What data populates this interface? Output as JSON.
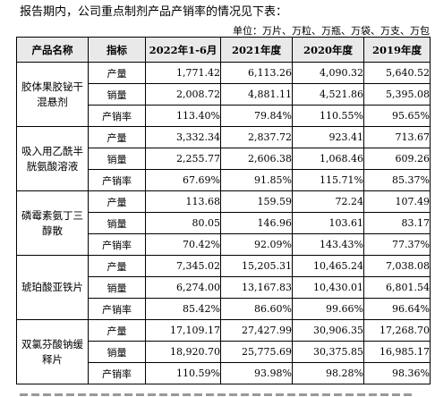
{
  "intro_text": "报告期内，公司重点制剂产品产销率的情况见下表：",
  "unit_text": "单位：万片、万粒、万瓶、万袋、万支、万包",
  "table": {
    "headers": [
      "产品名称",
      "指标",
      "2022年1-6月",
      "2021年度",
      "2020年度",
      "2019年度"
    ],
    "products": [
      {
        "name": "胶体果胶铋干混悬剂",
        "rows": [
          {
            "metric": "产量",
            "values": [
              "1,771.42",
              "6,113.26",
              "4,090.32",
              "5,640.52"
            ]
          },
          {
            "metric": "销量",
            "values": [
              "2,008.72",
              "4,881.11",
              "4,521.86",
              "5,395.08"
            ]
          },
          {
            "metric": "产销率",
            "values": [
              "113.40%",
              "79.84%",
              "110.55%",
              "95.65%"
            ]
          }
        ]
      },
      {
        "name": "吸入用乙酰半胱氨酸溶液",
        "rows": [
          {
            "metric": "产量",
            "values": [
              "3,332.34",
              "2,837.72",
              "923.41",
              "713.67"
            ]
          },
          {
            "metric": "销量",
            "values": [
              "2,255.77",
              "2,606.38",
              "1,068.46",
              "609.26"
            ]
          },
          {
            "metric": "产销率",
            "values": [
              "67.69%",
              "91.85%",
              "115.71%",
              "85.37%"
            ]
          }
        ]
      },
      {
        "name": "磷霉素氨丁三醇散",
        "rows": [
          {
            "metric": "产量",
            "values": [
              "113.68",
              "159.59",
              "72.24",
              "107.49"
            ]
          },
          {
            "metric": "销量",
            "values": [
              "80.05",
              "146.96",
              "103.61",
              "83.17"
            ]
          },
          {
            "metric": "产销率",
            "values": [
              "70.42%",
              "92.09%",
              "143.43%",
              "77.37%"
            ]
          }
        ]
      },
      {
        "name": "琥珀酸亚铁片",
        "rows": [
          {
            "metric": "产量",
            "values": [
              "7,345.02",
              "15,205.31",
              "10,465.24",
              "7,038.08"
            ]
          },
          {
            "metric": "销量",
            "values": [
              "6,274.00",
              "13,167.83",
              "10,430.01",
              "6,801.54"
            ]
          },
          {
            "metric": "产销率",
            "values": [
              "85.42%",
              "86.60%",
              "99.66%",
              "96.64%"
            ]
          }
        ]
      },
      {
        "name": "双氯芬酸钠缓释片",
        "rows": [
          {
            "metric": "产量",
            "values": [
              "17,109.17",
              "27,427.99",
              "30,906.35",
              "17,268.70"
            ]
          },
          {
            "metric": "销量",
            "values": [
              "18,920.70",
              "25,775.69",
              "30,375.85",
              "16,985.17"
            ]
          },
          {
            "metric": "产销率",
            "values": [
              "110.59%",
              "93.98%",
              "98.28%",
              "98.36%"
            ]
          }
        ]
      }
    ]
  }
}
